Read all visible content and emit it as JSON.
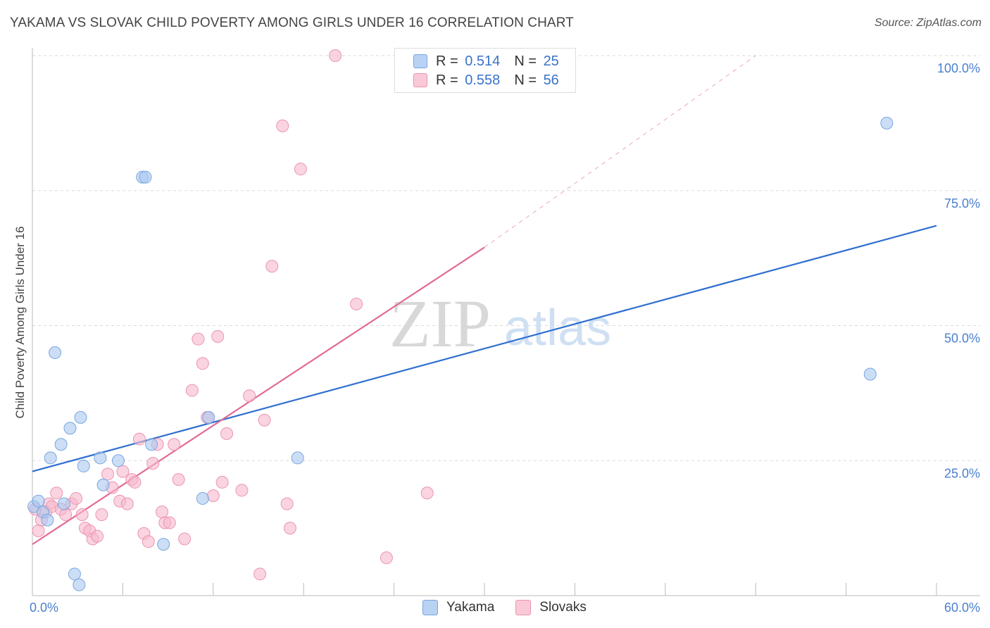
{
  "title": "YAKAMA VS SLOVAK CHILD POVERTY AMONG GIRLS UNDER 16 CORRELATION CHART",
  "source": "Source: ZipAtlas.com",
  "watermark": {
    "zip": "ZIP",
    "atlas": "atlas"
  },
  "colors": {
    "blue_fill": "#a9c8f0",
    "blue_stroke": "#7aa6e0",
    "blue_line": "#2f6fd0",
    "pink_fill": "#f6b8cb",
    "pink_stroke": "#eb94b0",
    "pink_line": "#e26a93",
    "axis_text": "#4a7fcf",
    "grid": "#d9d9d9"
  },
  "legend": {
    "rows": [
      {
        "r_label": "R =",
        "r_value": "0.514",
        "n_label": "N =",
        "n_value": "25"
      },
      {
        "r_label": "R =",
        "r_value": "0.558",
        "n_label": "N =",
        "n_value": "56"
      }
    ]
  },
  "bottom_legend": [
    "Yakama",
    "Slovaks"
  ],
  "chart_data": {
    "type": "scatter",
    "title": "YAKAMA VS SLOVAK CHILD POVERTY AMONG GIRLS UNDER 16 CORRELATION CHART",
    "xlabel": "",
    "ylabel": "Child Poverty Among Girls Under 16",
    "xlim": [
      0,
      60
    ],
    "ylim": [
      0,
      100
    ],
    "x_tick_labels": [
      "0.0%",
      "60.0%"
    ],
    "y_ticks": [
      25,
      50,
      75,
      100
    ],
    "y_tick_labels": [
      "25.0%",
      "50.0%",
      "75.0%",
      "100.0%"
    ],
    "grid": true,
    "series": [
      {
        "name": "Yakama",
        "points": [
          [
            0.1,
            16.5
          ],
          [
            0.4,
            17.5
          ],
          [
            0.7,
            15.5
          ],
          [
            1.0,
            14.0
          ],
          [
            1.2,
            25.5
          ],
          [
            1.5,
            45.0
          ],
          [
            1.9,
            28.0
          ],
          [
            2.1,
            17.0
          ],
          [
            2.5,
            31.0
          ],
          [
            2.8,
            4.0
          ],
          [
            3.1,
            2.0
          ],
          [
            3.2,
            33.0
          ],
          [
            3.4,
            24.0
          ],
          [
            4.5,
            25.5
          ],
          [
            4.7,
            20.5
          ],
          [
            5.7,
            25.0
          ],
          [
            7.3,
            77.5
          ],
          [
            7.5,
            77.5
          ],
          [
            7.9,
            28.0
          ],
          [
            8.7,
            9.5
          ],
          [
            11.3,
            18.0
          ],
          [
            11.7,
            33.0
          ],
          [
            17.6,
            25.5
          ],
          [
            55.6,
            41.0
          ],
          [
            56.7,
            87.5
          ]
        ],
        "trend": {
          "x": [
            0,
            60
          ],
          "y": [
            23,
            68.5
          ]
        }
      },
      {
        "name": "Slovaks",
        "points": [
          [
            0.2,
            16.0
          ],
          [
            0.4,
            12.0
          ],
          [
            0.6,
            14.0
          ],
          [
            0.9,
            15.5
          ],
          [
            1.1,
            17.0
          ],
          [
            1.3,
            16.5
          ],
          [
            1.6,
            19.0
          ],
          [
            1.9,
            16.0
          ],
          [
            2.2,
            15.0
          ],
          [
            2.6,
            17.0
          ],
          [
            2.9,
            18.0
          ],
          [
            3.3,
            15.0
          ],
          [
            3.5,
            12.5
          ],
          [
            3.8,
            12.0
          ],
          [
            4.0,
            10.5
          ],
          [
            4.3,
            11.0
          ],
          [
            4.6,
            15.0
          ],
          [
            5.0,
            22.5
          ],
          [
            5.3,
            20.0
          ],
          [
            5.8,
            17.5
          ],
          [
            6.0,
            23.0
          ],
          [
            6.3,
            17.0
          ],
          [
            6.6,
            21.5
          ],
          [
            6.8,
            21.0
          ],
          [
            7.1,
            29.0
          ],
          [
            7.4,
            11.5
          ],
          [
            7.7,
            10.0
          ],
          [
            8.0,
            24.5
          ],
          [
            8.3,
            28.0
          ],
          [
            8.6,
            15.5
          ],
          [
            8.8,
            13.5
          ],
          [
            9.1,
            13.5
          ],
          [
            9.4,
            28.0
          ],
          [
            9.7,
            21.5
          ],
          [
            10.1,
            10.5
          ],
          [
            10.6,
            38.0
          ],
          [
            11.0,
            47.5
          ],
          [
            11.3,
            43.0
          ],
          [
            11.6,
            33.0
          ],
          [
            12.0,
            18.5
          ],
          [
            12.3,
            48.0
          ],
          [
            12.6,
            21.0
          ],
          [
            12.9,
            30.0
          ],
          [
            13.9,
            19.5
          ],
          [
            14.4,
            37.0
          ],
          [
            15.1,
            4.0
          ],
          [
            15.4,
            32.5
          ],
          [
            15.9,
            61.0
          ],
          [
            16.6,
            87.0
          ],
          [
            16.9,
            17.0
          ],
          [
            17.1,
            12.5
          ],
          [
            17.8,
            79.0
          ],
          [
            20.1,
            100.0
          ],
          [
            21.5,
            54.0
          ],
          [
            23.5,
            7.0
          ],
          [
            26.2,
            19.0
          ]
        ],
        "trend": {
          "x": [
            0,
            30
          ],
          "y": [
            9.5,
            64.5
          ]
        },
        "trend_extension": {
          "x": [
            30,
            48
          ],
          "y": [
            64.5,
            100
          ]
        }
      }
    ]
  }
}
